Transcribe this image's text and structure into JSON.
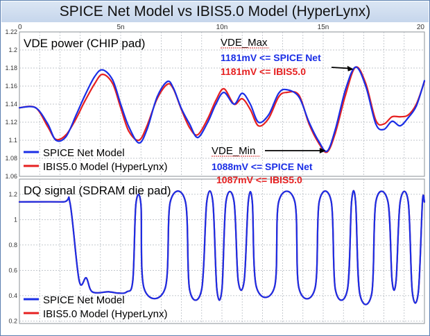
{
  "title": "SPICE Net Model vs IBIS5.0 Model (HyperLynx)",
  "colors": {
    "spice": "#1a2ee6",
    "ibis": "#e62020",
    "grid": "#aeb4bb",
    "annotation": "#000000"
  },
  "chart_data": [
    {
      "type": "line",
      "title": "VDE power (CHIP pad)",
      "x_ticks": [
        "0",
        "5n",
        "10n",
        "15n",
        "20"
      ],
      "xlim": [
        0,
        20
      ],
      "ylim": [
        1.06,
        1.22
      ],
      "y_ticks": [
        1.06,
        1.08,
        1.1,
        1.12,
        1.14,
        1.16,
        1.18,
        1.2,
        1.22
      ],
      "y_tick_labels": [
        "1.06",
        "1.08",
        "1.1",
        "1.12",
        "1.14",
        "1.16",
        "1.18",
        "1.2",
        "1.22"
      ],
      "grid": true,
      "legend_position": "bottom-left",
      "series": [
        {
          "name": "SPICE Net Model",
          "x": [
            0,
            0.8,
            1.4,
            1.8,
            2.3,
            2.8,
            3.2,
            3.7,
            4.1,
            4.6,
            5.0,
            5.4,
            5.9,
            6.3,
            6.8,
            7.3,
            7.6,
            8.0,
            8.4,
            8.8,
            9.3,
            9.7,
            10.1,
            10.6,
            11.0,
            11.4,
            11.8,
            12.3,
            12.8,
            13.2,
            13.8,
            14.3,
            14.8,
            15.2,
            15.6,
            16.1,
            16.6,
            17.1,
            17.6,
            18.0,
            18.4,
            18.8,
            19.2,
            19.6,
            20.0
          ],
          "y": [
            1.136,
            1.136,
            1.118,
            1.1,
            1.104,
            1.128,
            1.148,
            1.17,
            1.178,
            1.167,
            1.14,
            1.115,
            1.097,
            1.112,
            1.148,
            1.165,
            1.158,
            1.135,
            1.118,
            1.103,
            1.12,
            1.14,
            1.153,
            1.14,
            1.152,
            1.14,
            1.12,
            1.128,
            1.152,
            1.156,
            1.148,
            1.12,
            1.098,
            1.088,
            1.112,
            1.156,
            1.181,
            1.16,
            1.118,
            1.112,
            1.121,
            1.116,
            1.125,
            1.138,
            1.166
          ]
        },
        {
          "name": "IBIS5.0 Model (HyperLynx)",
          "x": [
            0,
            0.8,
            1.4,
            1.8,
            2.3,
            2.8,
            3.2,
            3.7,
            4.1,
            4.6,
            5.0,
            5.4,
            5.9,
            6.3,
            6.8,
            7.3,
            7.6,
            8.0,
            8.4,
            8.8,
            9.3,
            9.7,
            10.1,
            10.6,
            11.0,
            11.4,
            11.8,
            12.3,
            12.8,
            13.2,
            13.8,
            14.3,
            14.8,
            15.2,
            15.6,
            16.1,
            16.6,
            17.1,
            17.6,
            18.0,
            18.4,
            18.8,
            19.2,
            19.6,
            20.0
          ],
          "y": [
            1.136,
            1.136,
            1.115,
            1.101,
            1.106,
            1.124,
            1.142,
            1.162,
            1.173,
            1.163,
            1.136,
            1.11,
            1.1,
            1.116,
            1.146,
            1.162,
            1.157,
            1.134,
            1.114,
            1.106,
            1.124,
            1.144,
            1.157,
            1.14,
            1.146,
            1.134,
            1.116,
            1.124,
            1.148,
            1.153,
            1.15,
            1.118,
            1.096,
            1.087,
            1.108,
            1.15,
            1.181,
            1.163,
            1.122,
            1.118,
            1.126,
            1.126,
            1.128,
            1.14,
            1.165
          ]
        }
      ],
      "annotations": [
        {
          "label": "VDE_Max",
          "color": "#000000"
        },
        {
          "label": "1181mV <= SPICE Net",
          "color": "#1a2ee6"
        },
        {
          "label": "1181mV <= IBIS5.0",
          "color": "#e62020"
        },
        {
          "label": "VDE_Min",
          "color": "#000000"
        },
        {
          "label": "1088mV <= SPICE Net",
          "color": "#1a2ee6"
        },
        {
          "label": "1087mV <= IBIS5.0",
          "color": "#e62020"
        }
      ]
    },
    {
      "type": "line",
      "title": "DQ signal (SDRAM die pad)",
      "xlim": [
        0,
        20
      ],
      "ylim": [
        0.18,
        1.32
      ],
      "y_ticks": [
        0.2,
        0.4,
        0.6,
        0.8,
        1.0,
        1.2
      ],
      "y_tick_labels": [
        "0.2",
        "0.4",
        "0.6",
        "0.8",
        "1",
        "1.2"
      ],
      "grid": true,
      "legend_position": "bottom-left",
      "series": [
        {
          "name": "SPICE Net Model",
          "levels": [
            [
              0,
              1.14
            ],
            [
              2.15,
              1.14
            ],
            [
              2.5,
              1.13
            ],
            [
              2.95,
              0.52
            ],
            [
              3.3,
              0.54
            ],
            [
              3.6,
              0.43
            ],
            [
              4.4,
              0.43
            ],
            [
              4.9,
              0.42
            ],
            [
              5.3,
              0.43
            ],
            [
              5.6,
              0.52
            ],
            [
              5.75,
              1.12
            ],
            [
              6.0,
              1.12
            ],
            [
              6.15,
              0.46
            ],
            [
              7.2,
              0.46
            ],
            [
              7.45,
              1.14
            ],
            [
              8.2,
              1.14
            ],
            [
              8.4,
              0.45
            ],
            [
              9.0,
              0.45
            ],
            [
              9.25,
              1.14
            ],
            [
              9.55,
              1.14
            ],
            [
              9.75,
              0.45
            ],
            [
              10.0,
              0.45
            ],
            [
              10.2,
              1.14
            ],
            [
              10.6,
              1.14
            ],
            [
              10.8,
              0.52
            ],
            [
              11.1,
              0.52
            ],
            [
              11.3,
              1.14
            ],
            [
              11.5,
              1.14
            ],
            [
              11.7,
              0.47
            ],
            [
              12.6,
              0.47
            ],
            [
              12.8,
              1.14
            ],
            [
              13.6,
              1.14
            ],
            [
              13.8,
              0.46
            ],
            [
              14.6,
              0.46
            ],
            [
              14.8,
              1.14
            ],
            [
              15.4,
              1.14
            ],
            [
              15.6,
              0.45
            ],
            [
              16.2,
              0.45
            ],
            [
              16.4,
              1.14
            ],
            [
              16.6,
              1.14
            ],
            [
              16.8,
              0.42
            ],
            [
              17.4,
              0.42
            ],
            [
              17.6,
              1.14
            ],
            [
              18.2,
              1.14
            ],
            [
              18.4,
              0.52
            ],
            [
              18.6,
              0.52
            ],
            [
              18.8,
              1.14
            ],
            [
              19.2,
              1.14
            ],
            [
              19.4,
              0.43
            ],
            [
              19.7,
              0.43
            ],
            [
              19.9,
              1.14
            ],
            [
              20.0,
              1.14
            ]
          ]
        },
        {
          "name": "IBIS5.0 Model (HyperLynx)",
          "levels": [
            [
              0,
              1.14
            ],
            [
              2.15,
              1.14
            ],
            [
              2.5,
              1.13
            ],
            [
              2.95,
              0.52
            ],
            [
              3.3,
              0.54
            ],
            [
              3.6,
              0.43
            ],
            [
              4.4,
              0.43
            ],
            [
              4.9,
              0.42
            ],
            [
              5.3,
              0.43
            ],
            [
              5.6,
              0.52
            ],
            [
              5.75,
              1.12
            ],
            [
              6.0,
              1.12
            ],
            [
              6.15,
              0.46
            ],
            [
              7.2,
              0.46
            ],
            [
              7.45,
              1.14
            ],
            [
              8.2,
              1.14
            ],
            [
              8.4,
              0.45
            ],
            [
              9.0,
              0.45
            ],
            [
              9.25,
              1.14
            ],
            [
              9.55,
              1.14
            ],
            [
              9.75,
              0.45
            ],
            [
              10.0,
              0.45
            ],
            [
              10.2,
              1.14
            ],
            [
              10.6,
              1.14
            ],
            [
              10.8,
              0.52
            ],
            [
              11.1,
              0.52
            ],
            [
              11.3,
              1.14
            ],
            [
              11.5,
              1.14
            ],
            [
              11.7,
              0.47
            ],
            [
              12.6,
              0.47
            ],
            [
              12.8,
              1.14
            ],
            [
              13.6,
              1.14
            ],
            [
              13.8,
              0.46
            ],
            [
              14.6,
              0.46
            ],
            [
              14.8,
              1.14
            ],
            [
              15.4,
              1.14
            ],
            [
              15.6,
              0.45
            ],
            [
              16.2,
              0.45
            ],
            [
              16.4,
              1.14
            ],
            [
              16.6,
              1.14
            ],
            [
              16.8,
              0.42
            ],
            [
              17.4,
              0.42
            ],
            [
              17.6,
              1.14
            ],
            [
              18.2,
              1.14
            ],
            [
              18.4,
              0.52
            ],
            [
              18.6,
              0.52
            ],
            [
              18.8,
              1.14
            ],
            [
              19.2,
              1.14
            ],
            [
              19.4,
              0.43
            ],
            [
              19.7,
              0.43
            ],
            [
              19.9,
              1.14
            ],
            [
              20.0,
              1.14
            ]
          ]
        }
      ]
    }
  ]
}
